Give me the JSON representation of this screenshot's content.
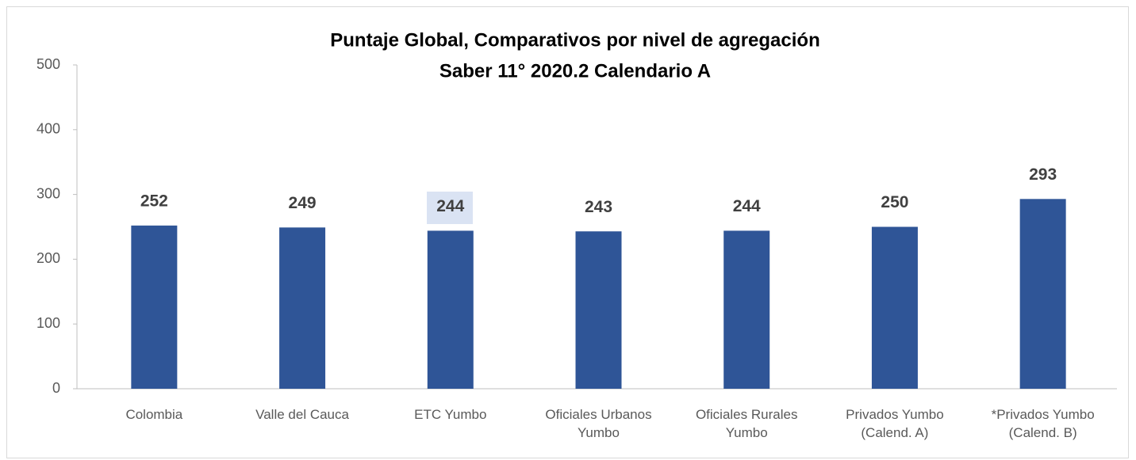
{
  "chart_data": {
    "type": "bar",
    "title": "Puntaje Global, Comparativos por nivel de agregación",
    "subtitle": "Saber 11° 2020.2 Calendario A",
    "categories": [
      "Colombia",
      "Valle del Cauca",
      "ETC Yumbo",
      "Oficiales Urbanos Yumbo",
      "Oficiales Rurales Yumbo",
      "Privados Yumbo (Calend. A)",
      "*Privados Yumbo (Calend. B)"
    ],
    "values": [
      252,
      249,
      244,
      243,
      244,
      250,
      293
    ],
    "color": "#2f5597",
    "ylim": [
      0,
      500
    ],
    "yticks": [
      0,
      100,
      200,
      300,
      400,
      500
    ],
    "grid": false
  }
}
